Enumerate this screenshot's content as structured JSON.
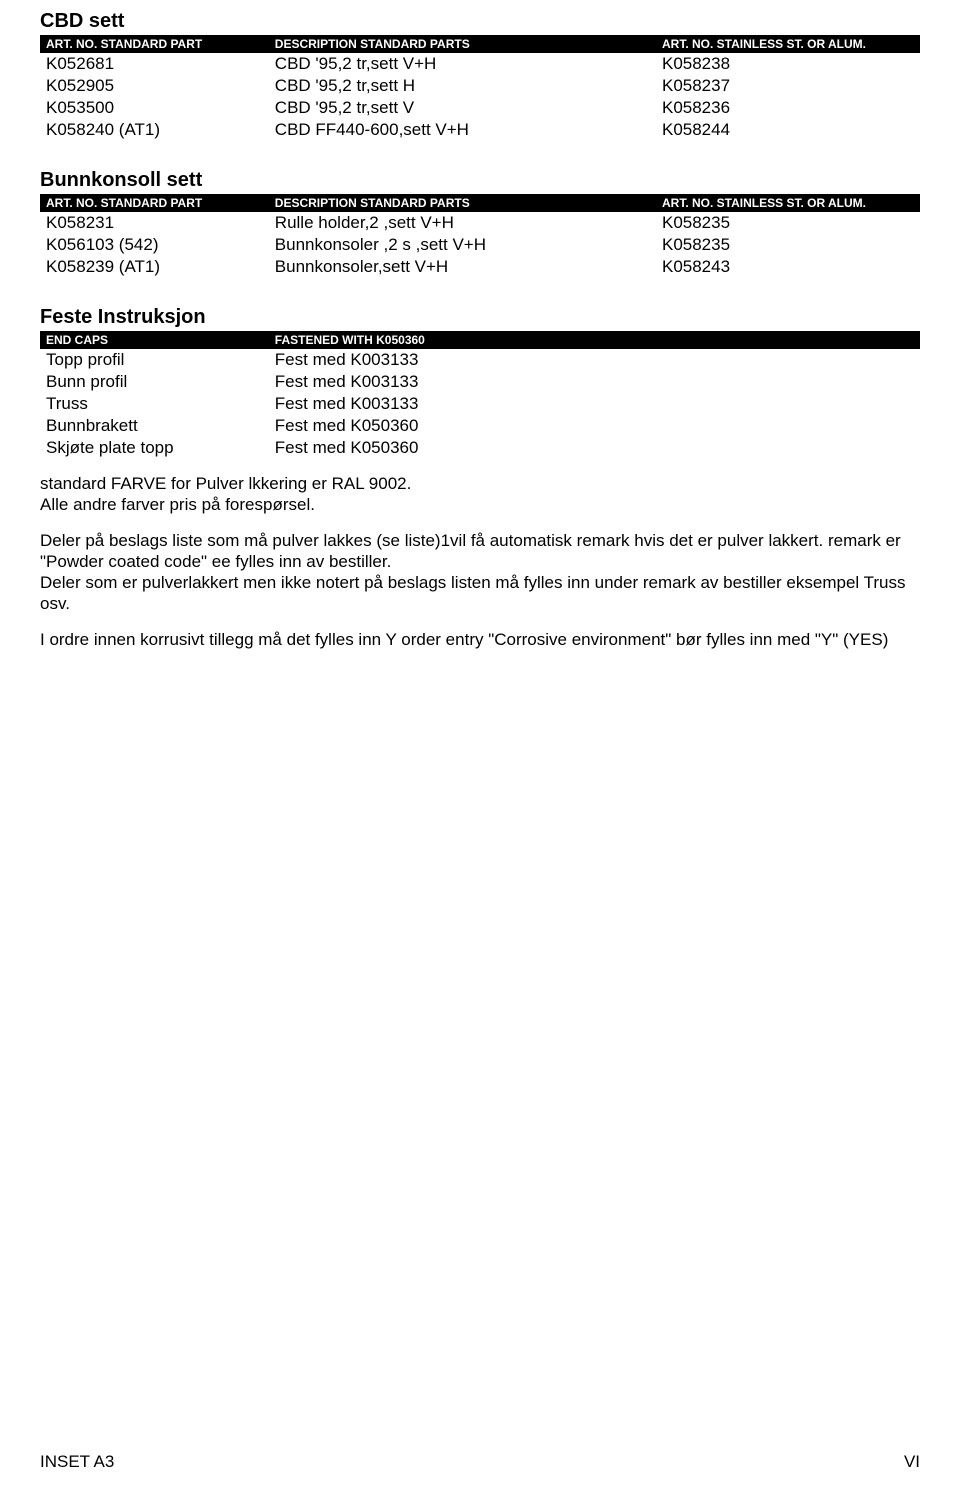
{
  "colors": {
    "header_bg": "#000000",
    "header_fg": "#ffffff",
    "page_bg": "#ffffff",
    "text": "#000000"
  },
  "typography": {
    "body_fontsize_pt": 13,
    "title_fontsize_pt": 15,
    "header_fontsize_pt": 9,
    "font_family": "Arial"
  },
  "sections": {
    "cbd": {
      "title": "CBD sett",
      "headers": [
        "ART. NO. STANDARD PART",
        "DESCRIPTION STANDARD PARTS",
        "ART. NO. STAINLESS ST. OR ALUM."
      ],
      "rows": [
        [
          "K052681",
          "CBD '95,2 tr,sett V+H",
          "K058238"
        ],
        [
          "K052905",
          "CBD '95,2 tr,sett H",
          "K058237"
        ],
        [
          "K053500",
          "CBD '95,2 tr,sett V",
          "K058236"
        ],
        [
          "K058240 (AT1)",
          "CBD FF440-600,sett V+H",
          "K058244"
        ]
      ]
    },
    "bunn": {
      "title": "Bunnkonsoll sett",
      "headers": [
        "ART. NO. STANDARD PART",
        "DESCRIPTION STANDARD PARTS",
        "ART. NO. STAINLESS ST. OR ALUM."
      ],
      "rows": [
        [
          "K058231",
          "Rulle holder,2 ,sett V+H",
          "K058235"
        ],
        [
          "K056103 (542)",
          "Bunnkonsoler ,2 s ,sett V+H",
          "K058235"
        ],
        [
          "K058239 (AT1)",
          "Bunnkonsoler,sett V+H",
          "K058243"
        ]
      ]
    },
    "feste": {
      "title": "Feste Instruksjon",
      "headers": [
        "END CAPS",
        "FASTENED WITH K050360"
      ],
      "rows": [
        [
          "Topp profil",
          "Fest med K003133"
        ],
        [
          "Bunn profil",
          "Fest med K003133"
        ],
        [
          "Truss",
          "Fest med K003133"
        ],
        [
          "Bunnbrakett",
          "Fest med K050360"
        ],
        [
          "Skjøte plate topp",
          "Fest med K050360"
        ]
      ]
    }
  },
  "paragraphs": {
    "p1": "standard FARVE for Pulver lkkering er RAL 9002.",
    "p2": "Alle andre farver pris på forespørsel.",
    "p3": "Deler på beslags liste som må pulver lakkes (se liste)1vil få automatisk remark hvis det er pulver lakkert.  remark er \"Powder coated code\" ee fylles inn av bestiller.",
    "p4": "Deler som er pulverlakkert men ikke notert på beslags listen må fylles inn under remark av bestiller eksempel Truss osv.",
    "p5": "I ordre innen korrusivt tillegg må det fylles inn Y order entry  \"Corrosive environment\" bør fylles inn med  \"Y\" (YES)"
  },
  "footer": {
    "left": "INSET A3",
    "right": "VI"
  }
}
